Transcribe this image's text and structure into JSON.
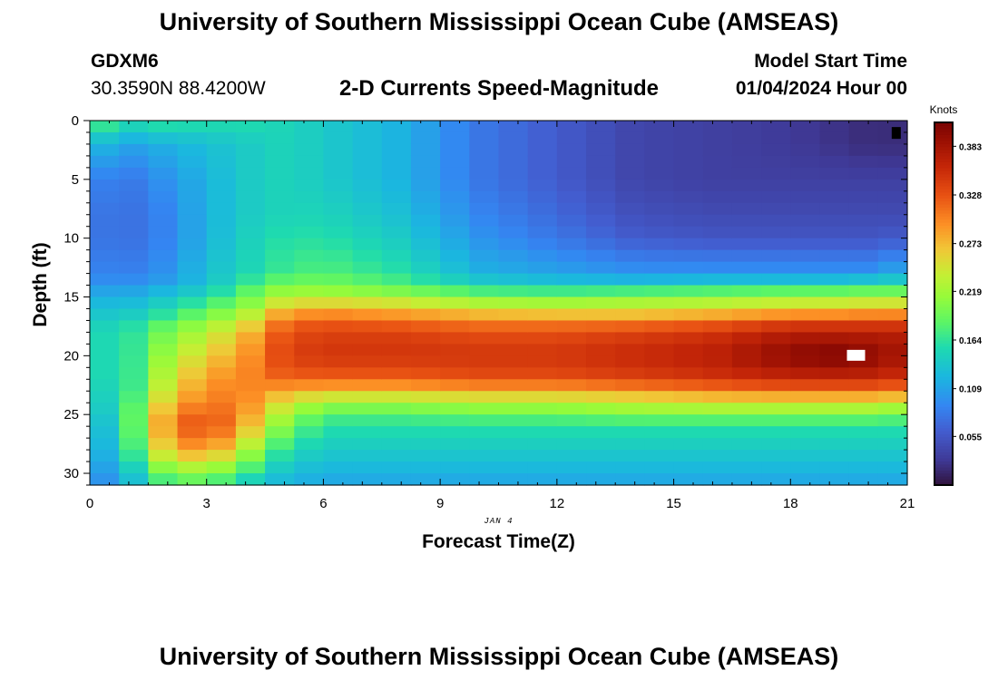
{
  "header": {
    "title": "University of Southern Mississippi Ocean Cube (AMSEAS)",
    "station_id": "GDXM6",
    "coordinates": "30.3590N  88.4200W",
    "plot_title": "2-D Currents Speed-Magnitude",
    "model_start_label": "Model Start Time",
    "model_start_value": "01/04/2024 Hour 00"
  },
  "footer": {
    "title": "University of Southern Mississippi Ocean Cube (AMSEAS)"
  },
  "chart_data": {
    "type": "heatmap",
    "title": "2-D Currents Speed-Magnitude",
    "xlabel": "Forecast Time(Z)",
    "ylabel": "Depth (ft)",
    "date_label": "JAN 4",
    "colorbar_label": "Knots",
    "xlim": [
      0,
      21
    ],
    "ylim": [
      0,
      31
    ],
    "x_ticks": [
      0,
      3,
      6,
      9,
      12,
      15,
      18,
      21
    ],
    "y_ticks": [
      0,
      5,
      10,
      15,
      20,
      25,
      30
    ],
    "colorbar_range": [
      0,
      0.41
    ],
    "colorbar_ticks": [
      "0.383",
      "0.328",
      "0.273",
      "0.219",
      "0.164",
      "0.109",
      "0.055"
    ],
    "colorbar_tick_values": [
      0.383,
      0.328,
      0.273,
      0.219,
      0.164,
      0.109,
      0.055
    ],
    "grid": {
      "time_step_hours": 0.75,
      "depth_step_ft": 1
    },
    "field_description": "Near-surface layer (0-14 ft) weak early, decaying to ~0.02 knots by hour 21; strong subsurface jet (16-24 ft) increasing to ~0.40 knots near hour 18-20; secondary maximum near hour 2-3 at 24-28 ft.",
    "anchors": {
      "times": [
        0,
        1,
        2,
        3,
        4,
        5,
        6,
        8,
        10,
        12,
        14,
        16,
        18,
        19,
        20,
        21
      ],
      "depths": [
        0,
        2,
        5,
        8,
        10,
        13,
        14,
        15,
        16,
        17,
        18,
        20,
        22,
        23,
        24,
        25,
        26,
        28,
        30,
        31
      ],
      "speed_rows": [
        [
          0.19,
          0.16,
          0.17,
          0.16,
          0.16,
          0.15,
          0.14,
          0.12,
          0.08,
          0.06,
          0.04,
          0.035,
          0.03,
          0.025,
          0.02,
          0.02
        ],
        [
          0.13,
          0.11,
          0.12,
          0.13,
          0.14,
          0.15,
          0.14,
          0.12,
          0.08,
          0.06,
          0.04,
          0.035,
          0.03,
          0.025,
          0.02,
          0.02
        ],
        [
          0.09,
          0.08,
          0.1,
          0.12,
          0.14,
          0.15,
          0.14,
          0.12,
          0.08,
          0.06,
          0.04,
          0.035,
          0.035,
          0.035,
          0.035,
          0.035
        ],
        [
          0.08,
          0.075,
          0.09,
          0.12,
          0.14,
          0.15,
          0.15,
          0.13,
          0.09,
          0.07,
          0.05,
          0.045,
          0.045,
          0.045,
          0.045,
          0.045
        ],
        [
          0.08,
          0.075,
          0.09,
          0.12,
          0.145,
          0.16,
          0.16,
          0.14,
          0.1,
          0.08,
          0.06,
          0.055,
          0.055,
          0.055,
          0.055,
          0.06
        ],
        [
          0.09,
          0.085,
          0.1,
          0.13,
          0.15,
          0.17,
          0.18,
          0.16,
          0.12,
          0.11,
          0.1,
          0.1,
          0.1,
          0.1,
          0.1,
          0.12
        ],
        [
          0.1,
          0.1,
          0.11,
          0.13,
          0.17,
          0.2,
          0.2,
          0.18,
          0.15,
          0.14,
          0.14,
          0.15,
          0.15,
          0.15,
          0.16,
          0.16
        ],
        [
          0.12,
          0.12,
          0.14,
          0.16,
          0.19,
          0.23,
          0.23,
          0.22,
          0.2,
          0.2,
          0.21,
          0.21,
          0.22,
          0.22,
          0.22,
          0.22
        ],
        [
          0.13,
          0.13,
          0.15,
          0.18,
          0.21,
          0.27,
          0.28,
          0.27,
          0.25,
          0.24,
          0.24,
          0.25,
          0.26,
          0.26,
          0.27,
          0.27
        ],
        [
          0.14,
          0.15,
          0.18,
          0.21,
          0.24,
          0.31,
          0.32,
          0.31,
          0.3,
          0.3,
          0.3,
          0.31,
          0.33,
          0.33,
          0.33,
          0.33
        ],
        [
          0.15,
          0.16,
          0.2,
          0.23,
          0.27,
          0.33,
          0.34,
          0.34,
          0.33,
          0.33,
          0.34,
          0.35,
          0.37,
          0.37,
          0.37,
          0.37
        ],
        [
          0.15,
          0.16,
          0.22,
          0.26,
          0.29,
          0.34,
          0.35,
          0.35,
          0.35,
          0.35,
          0.36,
          0.37,
          0.4,
          0.41,
          0.4,
          0.38
        ],
        [
          0.15,
          0.16,
          0.24,
          0.29,
          0.3,
          0.32,
          0.32,
          0.32,
          0.33,
          0.33,
          0.34,
          0.35,
          0.36,
          0.36,
          0.36,
          0.35
        ],
        [
          0.14,
          0.16,
          0.25,
          0.3,
          0.3,
          0.28,
          0.27,
          0.27,
          0.28,
          0.28,
          0.29,
          0.3,
          0.31,
          0.31,
          0.31,
          0.3
        ],
        [
          0.13,
          0.17,
          0.27,
          0.31,
          0.3,
          0.25,
          0.22,
          0.22,
          0.23,
          0.23,
          0.24,
          0.25,
          0.25,
          0.25,
          0.25,
          0.24
        ],
        [
          0.12,
          0.17,
          0.29,
          0.33,
          0.29,
          0.22,
          0.18,
          0.18,
          0.19,
          0.19,
          0.2,
          0.2,
          0.2,
          0.2,
          0.2,
          0.19
        ],
        [
          0.11,
          0.17,
          0.3,
          0.34,
          0.28,
          0.2,
          0.16,
          0.16,
          0.16,
          0.16,
          0.16,
          0.16,
          0.16,
          0.16,
          0.16,
          0.16
        ],
        [
          0.1,
          0.16,
          0.27,
          0.3,
          0.23,
          0.16,
          0.14,
          0.14,
          0.14,
          0.14,
          0.14,
          0.14,
          0.14,
          0.14,
          0.14,
          0.14
        ],
        [
          0.09,
          0.13,
          0.2,
          0.21,
          0.17,
          0.13,
          0.12,
          0.12,
          0.12,
          0.12,
          0.12,
          0.12,
          0.12,
          0.12,
          0.12,
          0.12
        ],
        [
          0.08,
          0.12,
          0.17,
          0.18,
          0.14,
          0.12,
          0.11,
          0.11,
          0.11,
          0.11,
          0.11,
          0.11,
          0.11,
          0.11,
          0.11,
          0.11
        ]
      ]
    }
  }
}
